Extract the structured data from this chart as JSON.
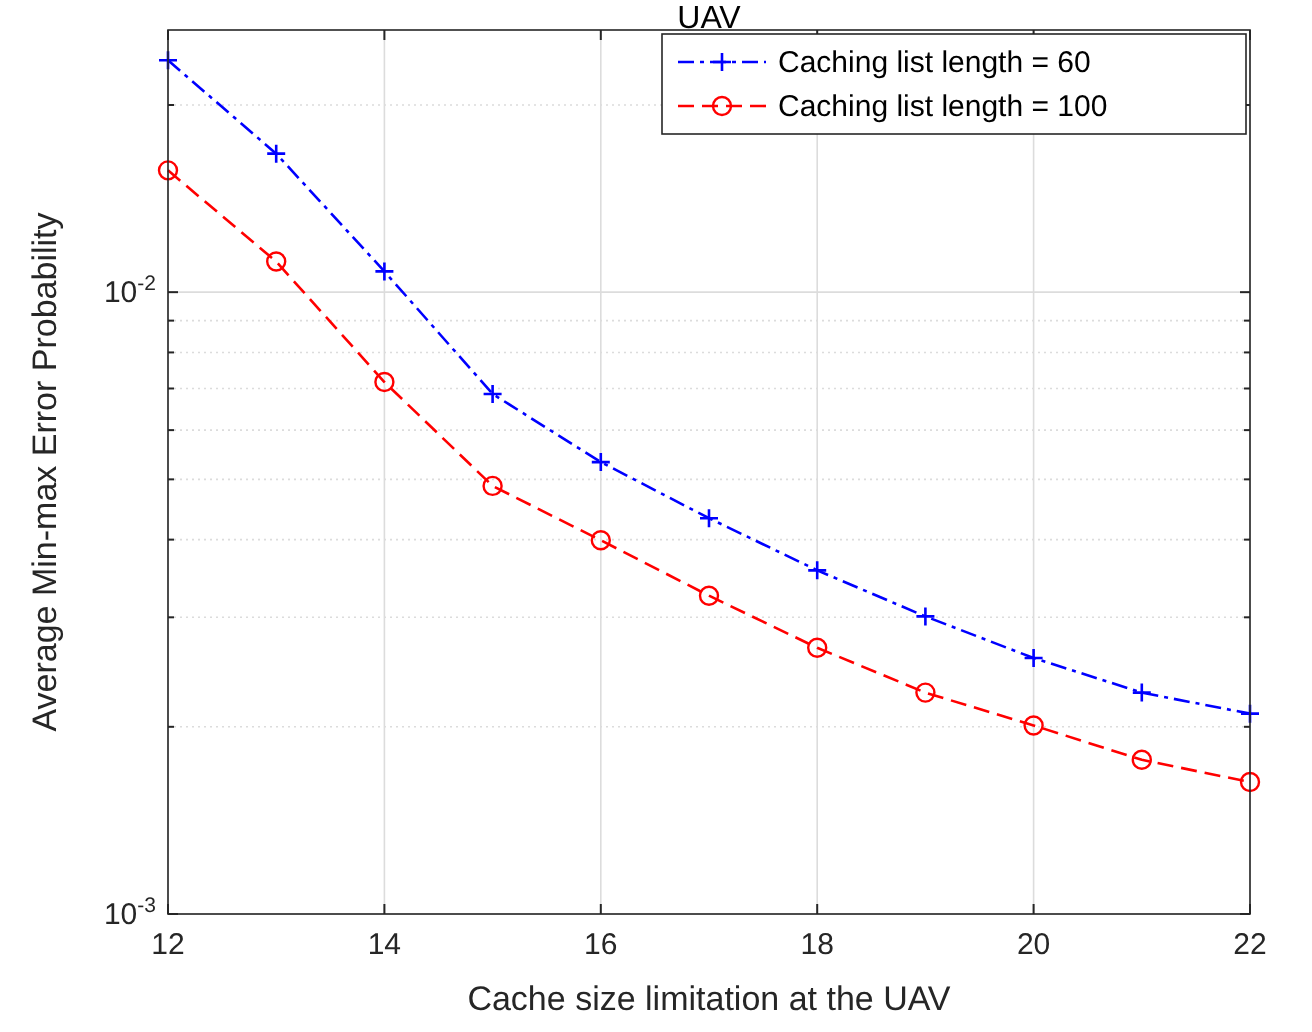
{
  "chart_data": {
    "type": "line",
    "title": "UAV",
    "xlabel": "Cache size limitation at the UAV",
    "ylabel": "Average Min-max Error Probability",
    "x": [
      12,
      13,
      14,
      15,
      16,
      17,
      18,
      19,
      20,
      21,
      22
    ],
    "series": [
      {
        "name": "Caching list length = 60",
        "color": "#0000ff",
        "marker": "cross",
        "line_style": "dashdot",
        "values": [
          0.0236,
          0.0167,
          0.0108,
          0.00686,
          0.00533,
          0.00433,
          0.00357,
          0.00301,
          0.00258,
          0.00227,
          0.0021
        ]
      },
      {
        "name": "Caching list length = 100",
        "color": "#ff0000",
        "marker": "circle",
        "line_style": "dashed",
        "values": [
          0.0157,
          0.0112,
          0.00717,
          0.00488,
          0.00399,
          0.00325,
          0.00268,
          0.00227,
          0.00201,
          0.00177,
          0.00163
        ]
      }
    ],
    "log": "y",
    "xlim": [
      12,
      22
    ],
    "ylim": [
      0.001,
      0.0264
    ],
    "xticks": [
      12,
      14,
      16,
      18,
      20,
      22
    ],
    "yticks": [
      {
        "value": 0.001,
        "label": "10$^{-3}$"
      },
      {
        "value": 0.002,
        "label": null
      },
      {
        "value": 0.003,
        "label": null
      },
      {
        "value": 0.004,
        "label": null
      },
      {
        "value": 0.005,
        "label": null
      },
      {
        "value": 0.006,
        "label": null
      },
      {
        "value": 0.007,
        "label": null
      },
      {
        "value": 0.008,
        "label": null
      },
      {
        "value": 0.009,
        "label": null
      },
      {
        "value": 0.01,
        "label": "10$^{-2}$"
      },
      {
        "value": 0.02,
        "label": null
      }
    ],
    "grid": true,
    "legend": "top right"
  }
}
